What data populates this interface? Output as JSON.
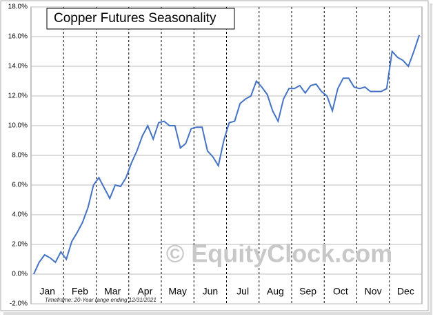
{
  "chart_data": {
    "type": "line",
    "title": "Copper Futures Seasonality",
    "watermark": "© EquityClock.com",
    "footnote": "Timeframe: 20-Year range ending 12/31/2021",
    "categories": [
      null,
      null,
      null,
      "Jan",
      null,
      null,
      null,
      null,
      null,
      "Feb",
      null,
      null,
      null,
      null,
      null,
      "Mar",
      null,
      null,
      null,
      null,
      null,
      "Apr",
      null,
      null,
      null,
      null,
      null,
      "May",
      null,
      null,
      null,
      null,
      null,
      "Jun",
      null,
      null,
      null,
      null,
      null,
      "Jul",
      null,
      null,
      null,
      null,
      null,
      "Aug",
      null,
      null,
      null,
      null,
      null,
      "Sep",
      null,
      null,
      null,
      null,
      null,
      "Oct",
      null,
      null,
      null,
      null,
      null,
      "Nov",
      null,
      null,
      null,
      null,
      null,
      "Dec",
      null,
      null
    ],
    "series": [
      {
        "name": "Copper Futures",
        "color": "#4472c4",
        "values": [
          0,
          0.8,
          1.3,
          1.1,
          0.8,
          1.5,
          1.0,
          2.2,
          2.8,
          3.5,
          4.5,
          6.0,
          6.5,
          5.8,
          5.1,
          6.0,
          5.9,
          6.5,
          7.5,
          8.3,
          9.3,
          10.0,
          9.1,
          10.2,
          10.3,
          10.0,
          10.0,
          8.5,
          8.8,
          9.8,
          9.9,
          9.9,
          8.3,
          7.9,
          7.3,
          9.0,
          10.2,
          10.3,
          11.5,
          11.8,
          12.0,
          13.0,
          12.6,
          12.1,
          11.0,
          10.3,
          11.8,
          12.5,
          12.5,
          12.7,
          12.2,
          12.7,
          12.8,
          12.3,
          12.0,
          11.0,
          12.5,
          13.2,
          13.2,
          12.6,
          12.5,
          12.6,
          12.3,
          12.3,
          12.3,
          12.5,
          15.0,
          14.6,
          14.4,
          14.0,
          15.0,
          16.1
        ]
      }
    ],
    "ylim": [
      -2,
      18
    ],
    "yticks": [
      {
        "value": -2,
        "label": "-2.0%"
      },
      {
        "value": 0,
        "label": "0.0%"
      },
      {
        "value": 2,
        "label": "2.0%"
      },
      {
        "value": 4,
        "label": "4.0%"
      },
      {
        "value": 6,
        "label": "6.0%"
      },
      {
        "value": 8,
        "label": "8.0%"
      },
      {
        "value": 10,
        "label": "10.0%"
      },
      {
        "value": 12,
        "label": "12.0%"
      },
      {
        "value": 14,
        "label": "14.0%"
      },
      {
        "value": 16,
        "label": "16.0%"
      },
      {
        "value": 18,
        "label": "18.0%"
      }
    ],
    "grid": true
  }
}
